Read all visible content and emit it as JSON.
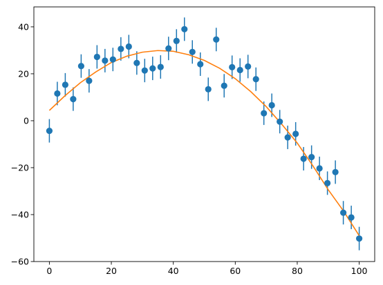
{
  "chart_data": {
    "type": "scatter",
    "title": "",
    "xlabel": "",
    "ylabel": "",
    "xlim": [
      -5,
      105
    ],
    "ylim": [
      -60,
      48.5
    ],
    "x_ticks": [
      0,
      20,
      40,
      60,
      80,
      100
    ],
    "y_ticks": [
      -60,
      -40,
      -20,
      0,
      20,
      40
    ],
    "grid": false,
    "legend": "none",
    "colors": {
      "points": "#1f77b4",
      "fit": "#ff7f0e",
      "axes": "#000000"
    },
    "series": [
      {
        "kind": "errorbar",
        "error": 5,
        "x": [
          0,
          2.56,
          5.13,
          7.69,
          10.26,
          12.82,
          15.38,
          17.95,
          20.51,
          23.08,
          25.64,
          28.21,
          30.77,
          33.33,
          35.9,
          38.46,
          41.03,
          43.59,
          46.15,
          48.72,
          51.28,
          53.85,
          56.41,
          58.97,
          61.54,
          64.1,
          66.67,
          69.23,
          71.79,
          74.36,
          76.92,
          79.49,
          82.05,
          84.62,
          87.18,
          89.74,
          92.31,
          94.87,
          97.44,
          100
        ],
        "y": [
          -4.3,
          11.6,
          15.3,
          9.2,
          23.3,
          17.0,
          27.2,
          25.6,
          26.1,
          30.6,
          31.6,
          24.6,
          21.4,
          22.3,
          22.9,
          30.8,
          34.0,
          39.0,
          29.3,
          24.1,
          13.4,
          34.6,
          14.9,
          22.8,
          21.6,
          23.1,
          17.7,
          3.2,
          6.6,
          -0.4,
          -7.1,
          -5.6,
          -16.2,
          -15.5,
          -20.3,
          -26.6,
          -21.9,
          -39.2,
          -41.2,
          -50.2
        ]
      },
      {
        "kind": "line",
        "x": [
          0,
          5,
          10,
          15,
          20,
          25,
          30,
          35,
          40,
          45,
          50,
          55,
          60,
          65,
          70,
          75,
          80,
          85,
          90,
          95,
          100
        ],
        "y": [
          4.4,
          10.6,
          16.2,
          20.8,
          24.8,
          27.5,
          29.2,
          29.9,
          29.6,
          28.1,
          25.7,
          22.3,
          17.9,
          12.4,
          6.0,
          -1.5,
          -9.5,
          -19.1,
          -29.4,
          -38.6,
          -49.0
        ]
      }
    ]
  }
}
